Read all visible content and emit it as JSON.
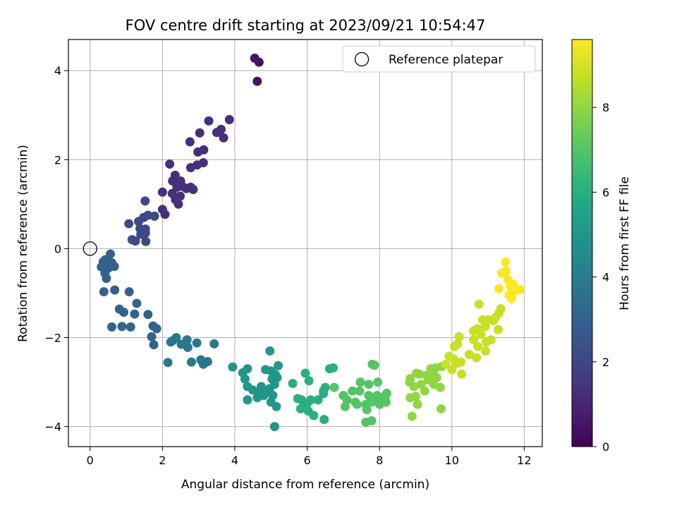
{
  "chart_data": {
    "type": "scatter",
    "title": "FOV centre drift starting at 2023/09/21 10:54:47",
    "xlabel": "Angular distance from reference (arcmin)",
    "ylabel": "Rotation from reference (arcmin)",
    "xlim": [
      -0.6,
      12.5
    ],
    "ylim": [
      -4.45,
      4.7
    ],
    "xticks": [
      0,
      2,
      4,
      6,
      8,
      10,
      12
    ],
    "yticks": [
      -4,
      -2,
      0,
      2,
      4
    ],
    "grid": true,
    "legend": {
      "position": "top-right",
      "entries": [
        {
          "label": "Reference platepar",
          "marker": "open-circle"
        }
      ]
    },
    "reference_point": {
      "x": 0,
      "y": 0
    },
    "colorbar": {
      "label": "Hours from first FF file",
      "range": [
        0,
        9.6
      ],
      "ticks": [
        0,
        2,
        4,
        6,
        8
      ],
      "colormap": "viridis"
    },
    "series": [
      {
        "hours": 0.5,
        "points": [
          [
            4.55,
            4.28
          ],
          [
            4.67,
            4.19
          ],
          [
            4.62,
            3.76
          ]
        ]
      },
      {
        "hours": 1.3,
        "points": [
          [
            3.85,
            2.9
          ],
          [
            3.28,
            2.87
          ],
          [
            3.62,
            2.68
          ],
          [
            3.5,
            2.61
          ],
          [
            3.69,
            2.49
          ],
          [
            3.03,
            2.6
          ],
          [
            2.76,
            2.4
          ],
          [
            3.14,
            2.22
          ],
          [
            2.98,
            2.17
          ],
          [
            3.13,
            1.93
          ],
          [
            2.96,
            1.88
          ],
          [
            2.78,
            1.82
          ],
          [
            2.2,
            1.9
          ],
          [
            2.35,
            1.65
          ],
          [
            2.28,
            1.52
          ],
          [
            2.5,
            1.52
          ],
          [
            2.55,
            1.4
          ],
          [
            2.4,
            1.38
          ],
          [
            2.78,
            1.38
          ],
          [
            2.66,
            1.35
          ],
          [
            2.85,
            1.33
          ],
          [
            2.0,
            1.27
          ],
          [
            2.27,
            1.24
          ],
          [
            2.49,
            1.18
          ],
          [
            2.36,
            1.1
          ],
          [
            2.44,
            1.0
          ],
          [
            2.0,
            0.88
          ],
          [
            2.07,
            0.77
          ]
        ]
      },
      {
        "hours": 2.1,
        "points": [
          [
            1.52,
            1.07
          ],
          [
            1.78,
            0.73
          ],
          [
            1.6,
            0.75
          ],
          [
            1.48,
            0.7
          ],
          [
            1.34,
            0.61
          ],
          [
            1.07,
            0.56
          ],
          [
            1.38,
            0.45
          ],
          [
            1.53,
            0.44
          ],
          [
            1.53,
            0.35
          ],
          [
            1.4,
            0.32
          ],
          [
            1.16,
            0.2
          ],
          [
            1.25,
            0.17
          ],
          [
            1.54,
            0.16
          ]
        ]
      },
      {
        "hours": 3.0,
        "points": [
          [
            0.56,
            -0.12
          ],
          [
            0.42,
            -0.25
          ],
          [
            0.36,
            -0.3
          ],
          [
            0.6,
            -0.32
          ],
          [
            0.31,
            -0.41
          ],
          [
            0.5,
            -0.44
          ],
          [
            0.67,
            -0.4
          ],
          [
            0.41,
            -0.55
          ],
          [
            0.45,
            -0.67
          ],
          [
            0.38,
            -0.97
          ],
          [
            0.68,
            -0.93
          ],
          [
            1.08,
            -0.97
          ],
          [
            1.29,
            -1.23
          ],
          [
            0.81,
            -1.36
          ],
          [
            0.93,
            -1.43
          ],
          [
            1.23,
            -1.47
          ],
          [
            1.6,
            -1.48
          ],
          [
            0.6,
            -1.76
          ],
          [
            0.88,
            -1.75
          ],
          [
            1.12,
            -1.76
          ],
          [
            1.74,
            -1.74
          ],
          [
            1.84,
            -1.8
          ],
          [
            1.7,
            -1.98
          ],
          [
            1.76,
            -2.16
          ]
        ]
      },
      {
        "hours": 3.8,
        "points": [
          [
            2.28,
            -2.07
          ],
          [
            2.38,
            -2.0
          ],
          [
            2.23,
            -2.1
          ],
          [
            2.68,
            -2.05
          ],
          [
            2.95,
            -2.12
          ],
          [
            2.52,
            -2.15
          ],
          [
            2.7,
            -2.22
          ],
          [
            3.43,
            -2.14
          ],
          [
            2.15,
            -2.56
          ],
          [
            2.8,
            -2.55
          ],
          [
            3.06,
            -2.5
          ],
          [
            3.13,
            -2.6
          ],
          [
            3.25,
            -2.54
          ]
        ]
      },
      {
        "hours": 5.0,
        "points": [
          [
            3.94,
            -2.66
          ],
          [
            4.22,
            -2.79
          ],
          [
            4.35,
            -2.7
          ],
          [
            4.28,
            -2.93
          ],
          [
            4.35,
            -3.1
          ],
          [
            4.5,
            -3.18
          ],
          [
            4.35,
            -3.4
          ],
          [
            4.65,
            -3.25
          ],
          [
            4.73,
            -3.1
          ],
          [
            4.85,
            -2.72
          ],
          [
            4.97,
            -2.3
          ],
          [
            5.0,
            -2.75
          ],
          [
            5.12,
            -2.83
          ],
          [
            5.2,
            -2.63
          ],
          [
            5.03,
            -2.93
          ],
          [
            5.1,
            -3.05
          ],
          [
            4.96,
            -3.15
          ],
          [
            4.88,
            -3.2
          ],
          [
            5.05,
            -3.3
          ],
          [
            4.8,
            -3.3
          ],
          [
            4.62,
            -3.35
          ],
          [
            5.0,
            -3.45
          ],
          [
            5.15,
            -3.55
          ],
          [
            5.1,
            -4.0
          ],
          [
            5.17,
            -2.9
          ]
        ]
      },
      {
        "hours": 6.0,
        "points": [
          [
            5.6,
            -3.03
          ],
          [
            5.95,
            -2.8
          ],
          [
            6.05,
            -2.97
          ],
          [
            5.74,
            -3.37
          ],
          [
            5.85,
            -3.4
          ],
          [
            6.1,
            -3.4
          ],
          [
            6.0,
            -3.48
          ],
          [
            5.9,
            -3.55
          ],
          [
            5.82,
            -3.6
          ],
          [
            6.03,
            -3.65
          ],
          [
            6.18,
            -3.75
          ],
          [
            6.3,
            -3.4
          ],
          [
            6.45,
            -3.2
          ],
          [
            6.5,
            -3.12
          ],
          [
            6.45,
            -3.26
          ],
          [
            6.47,
            -3.84
          ],
          [
            6.62,
            -2.7
          ],
          [
            6.72,
            -2.68
          ]
        ]
      },
      {
        "hours": 7.0,
        "points": [
          [
            6.75,
            -3.12
          ],
          [
            7.0,
            -3.3
          ],
          [
            7.1,
            -3.4
          ],
          [
            7.05,
            -3.55
          ],
          [
            7.25,
            -3.2
          ],
          [
            7.47,
            -3.0
          ],
          [
            7.45,
            -3.2
          ],
          [
            7.33,
            -3.45
          ],
          [
            7.38,
            -3.5
          ],
          [
            7.62,
            -3.5
          ],
          [
            7.65,
            -3.62
          ],
          [
            7.62,
            -3.9
          ],
          [
            7.78,
            -3.87
          ],
          [
            7.7,
            -3.05
          ],
          [
            7.7,
            -3.3
          ],
          [
            7.78,
            -3.45
          ],
          [
            7.8,
            -2.6
          ],
          [
            7.86,
            -2.62
          ],
          [
            7.95,
            -3.0
          ],
          [
            7.93,
            -3.3
          ],
          [
            8.05,
            -3.35
          ],
          [
            7.97,
            -3.45
          ],
          [
            8.2,
            -3.25
          ],
          [
            8.15,
            -3.35
          ],
          [
            8.0,
            -3.5
          ],
          [
            8.18,
            -3.45
          ]
        ]
      },
      {
        "hours": 8.0,
        "points": [
          [
            8.85,
            -2.92
          ],
          [
            8.83,
            -3.0
          ],
          [
            9.02,
            -2.8
          ],
          [
            9.1,
            -2.82
          ],
          [
            9.15,
            -3.05
          ],
          [
            9.3,
            -2.85
          ],
          [
            9.42,
            -2.7
          ],
          [
            9.35,
            -2.95
          ],
          [
            9.55,
            -2.68
          ],
          [
            9.48,
            -2.78
          ],
          [
            9.5,
            -3.05
          ],
          [
            9.25,
            -3.2
          ],
          [
            9.58,
            -2.9
          ],
          [
            9.72,
            -2.65
          ],
          [
            9.68,
            -3.12
          ],
          [
            8.95,
            -3.1
          ],
          [
            9.0,
            -3.32
          ],
          [
            8.85,
            -3.35
          ],
          [
            9.05,
            -3.5
          ],
          [
            9.7,
            -3.6
          ],
          [
            8.9,
            -3.77
          ]
        ]
      },
      {
        "hours": 8.8,
        "points": [
          [
            9.83,
            -2.6
          ],
          [
            9.92,
            -2.42
          ],
          [
            10.05,
            -2.48
          ],
          [
            10.12,
            -2.58
          ],
          [
            10.0,
            -2.72
          ],
          [
            10.25,
            -2.55
          ],
          [
            10.27,
            -2.82
          ],
          [
            10.07,
            -2.2
          ],
          [
            10.15,
            -2.15
          ],
          [
            10.2,
            -1.98
          ],
          [
            10.48,
            -2.38
          ],
          [
            10.6,
            -2.05
          ],
          [
            10.6,
            -1.85
          ],
          [
            10.7,
            -1.8
          ],
          [
            10.72,
            -2.2
          ],
          [
            10.68,
            -2.45
          ],
          [
            10.8,
            -1.93
          ],
          [
            10.85,
            -1.6
          ],
          [
            10.75,
            -1.25
          ],
          [
            10.92,
            -1.75
          ],
          [
            10.93,
            -2.3
          ],
          [
            11.0,
            -1.6
          ],
          [
            11.08,
            -2.05
          ],
          [
            11.15,
            -1.62
          ],
          [
            11.2,
            -1.55
          ],
          [
            11.28,
            -1.82
          ],
          [
            11.3,
            -1.45
          ],
          [
            11.35,
            -1.35
          ],
          [
            10.95,
            -2.1
          ]
        ]
      },
      {
        "hours": 9.6,
        "points": [
          [
            11.3,
            -0.9
          ],
          [
            11.38,
            -0.55
          ],
          [
            11.48,
            -0.3
          ],
          [
            11.5,
            -0.5
          ],
          [
            11.55,
            -0.7
          ],
          [
            11.62,
            -0.85
          ],
          [
            11.65,
            -1.0
          ],
          [
            11.75,
            -0.95
          ],
          [
            11.88,
            -0.92
          ],
          [
            11.7,
            -0.8
          ],
          [
            11.58,
            -1.05
          ],
          [
            11.65,
            -1.12
          ]
        ]
      }
    ]
  }
}
